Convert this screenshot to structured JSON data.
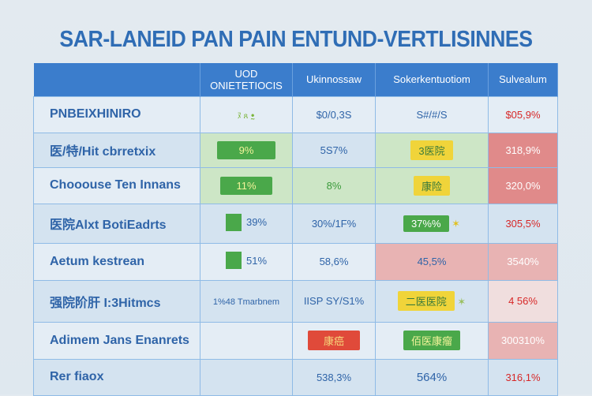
{
  "title": "SAR-LANEID PAN PAIN ENTUND-VERTLISINNES",
  "headers": [
    "",
    "UOD ONIETETIOCIS",
    "Ukinnossaw",
    "Sokerkentuotiom",
    "Sulvealum"
  ],
  "rows": [
    {
      "label": "PNBEIXHINIRO",
      "c1": "ﾇ ጸ ꔸ",
      "c2": "$0/0,3S",
      "c3": "S#/#/S",
      "c4": "$05,9%"
    },
    {
      "label": "医/特/Hit cbrretxix",
      "c1": "9%",
      "c2": "5S7%",
      "c3": "3医院",
      "c4": "318,9%"
    },
    {
      "label": "Chooouse Ten Innans",
      "c1": "11%",
      "c2": "8%",
      "c3": "康险",
      "c4": "320,0%"
    },
    {
      "label": "医院Alxt BotiEadrts",
      "c1": "39%",
      "c2": "30%/1F%",
      "c3": "37%%",
      "c4": "305,5%"
    },
    {
      "label": "Aetum kestrean",
      "c1": "51%",
      "c2": "58,6%",
      "c3": "45,5%",
      "c4": "3540%"
    },
    {
      "label": "强院阶肝 I:3Hitmcs",
      "c1": "1%48 Tmarbnem",
      "c2": "IISP SY/S1%",
      "c3": "二医医院",
      "c4": "4 56%"
    },
    {
      "label": "Adimem Jans Enanrets",
      "c1": "",
      "c2": "康癌",
      "c3": "佰医康瘤",
      "c4": "300310%"
    },
    {
      "label": "Rer fiaox",
      "c1": "",
      "c2": "538,3%",
      "c3": "564%",
      "c4": "316,1%"
    }
  ],
  "colors": {
    "accent": "#3b7dcc",
    "green": "#4aa84a",
    "yellow": "#f0d43a",
    "red": "#e04a3a"
  }
}
